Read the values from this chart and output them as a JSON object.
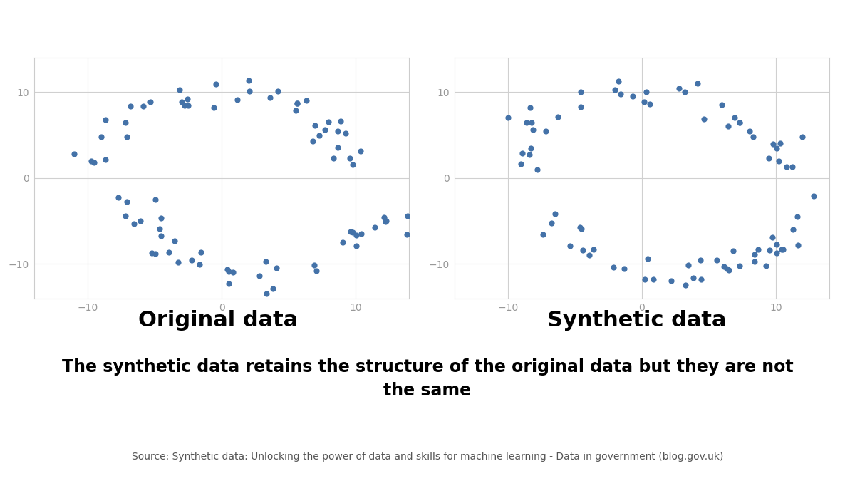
{
  "title1": "Original data",
  "title2": "Synthetic data",
  "caption": "The synthetic data retains the structure of the original data but they are not\nthe same",
  "source": "Source: Synthetic data: Unlocking the power of data and skills for machine learning - Data in government (blog.gov.uk)",
  "dot_color": "#4472a8",
  "dot_size": 35,
  "xlim": [
    -14,
    14
  ],
  "ylim": [
    -14,
    14
  ],
  "xticks": [
    -10,
    0,
    10
  ],
  "yticks": [
    -10,
    0,
    10
  ],
  "bg_color": "#ffffff",
  "grid_color": "#d0d0d0",
  "tick_color": "#999999",
  "spine_color": "#cccccc"
}
